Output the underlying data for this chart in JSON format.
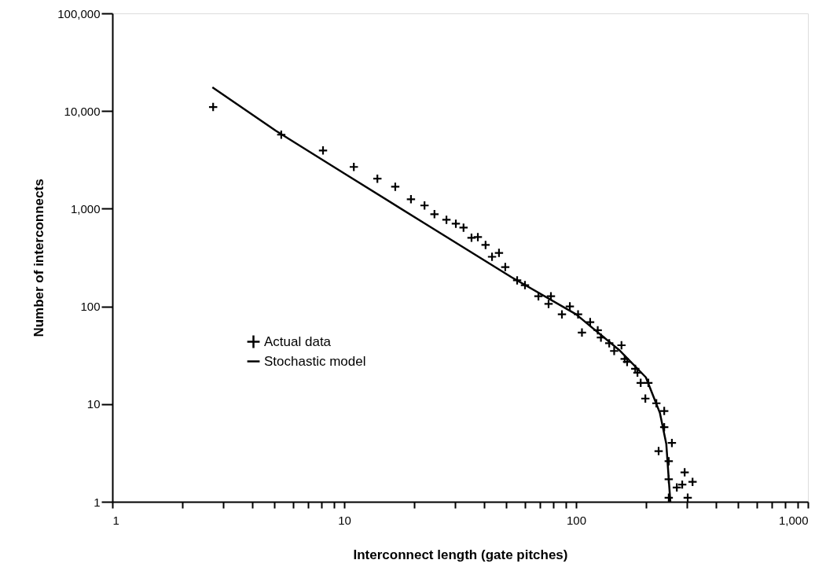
{
  "chart_data": {
    "type": "scatter",
    "xlabel": "Interconnect length (gate pitches)",
    "ylabel": "Number of interconnects",
    "log": "xy",
    "xlim": [
      1,
      1000
    ],
    "ylim": [
      1,
      100000
    ],
    "xticks": [
      1,
      {
        "value": 2,
        "label": null
      },
      {
        "value": 3,
        "label": null
      },
      {
        "value": 4,
        "label": null
      },
      {
        "value": 5,
        "label": null
      },
      {
        "value": 6,
        "label": null
      },
      {
        "value": 7,
        "label": null
      },
      {
        "value": 8,
        "label": null
      },
      {
        "value": 9,
        "label": null
      },
      10,
      {
        "value": 20,
        "label": null
      },
      {
        "value": 30,
        "label": null
      },
      {
        "value": 40,
        "label": null
      },
      {
        "value": 50,
        "label": null
      },
      {
        "value": 60,
        "label": null
      },
      {
        "value": 70,
        "label": null
      },
      {
        "value": 80,
        "label": null
      },
      {
        "value": 90,
        "label": null
      },
      100,
      {
        "value": 200,
        "label": null
      },
      {
        "value": 300,
        "label": null
      },
      {
        "value": 400,
        "label": null
      },
      {
        "value": 500,
        "label": null
      },
      {
        "value": 600,
        "label": null
      },
      {
        "value": 700,
        "label": null
      },
      {
        "value": 800,
        "label": null
      },
      {
        "value": 900,
        "label": null
      },
      {
        "value": 1000,
        "label": "1,000"
      }
    ],
    "yticks": [
      1,
      10,
      100,
      {
        "value": 1000,
        "label": "1,000"
      },
      {
        "value": 10000,
        "label": "10,000"
      },
      {
        "value": 100000,
        "label": "100,000"
      }
    ],
    "grid": false,
    "legend": "bottom left",
    "series": [
      {
        "name": "Actual data",
        "type": "scatter",
        "marker": "cross",
        "color": "#000000",
        "x": [
          2.72,
          5.35,
          8.1,
          11.0,
          13.9,
          16.6,
          19.4,
          22.2,
          24.5,
          27.6,
          30.3,
          32.7,
          35.4,
          37.7,
          40.7,
          43.4,
          46.5,
          49.5,
          55.7,
          60.2,
          68.8,
          76.1,
          77.9,
          86.9,
          94.0,
          102,
          106,
          115,
          124,
          128,
          139,
          146,
          157,
          162,
          166,
          180,
          184,
          190,
          199,
          205,
          222,
          227,
          240,
          240,
          251,
          251,
          251,
          259,
          272,
          287,
          294,
          303,
          318
        ],
        "values": [
          11000,
          5730,
          3950,
          2680,
          2030,
          1680,
          1250,
          1080,
          880,
          771,
          703,
          640,
          504,
          513,
          426,
          322,
          353,
          253,
          185,
          165,
          127,
          106,
          127,
          83,
          100,
          83,
          54,
          69,
          57,
          48,
          42,
          35,
          40,
          29,
          27,
          23,
          21,
          16.5,
          11.4,
          16.5,
          10.2,
          3.3,
          8.5,
          5.8,
          2.6,
          1.7,
          1.1,
          4.0,
          1.4,
          1.5,
          2.0,
          1.1,
          1.6
        ]
      },
      {
        "name": "Stochastic model",
        "type": "line",
        "marker": "none",
        "line_style": "solid",
        "color": "#000000",
        "x": [
          2.7,
          5.07,
          10,
          21.8,
          52.7,
          100,
          153,
          200,
          230,
          245,
          255
        ],
        "values": [
          17500,
          6290,
          2300,
          729,
          199,
          83,
          36,
          18.8,
          8.1,
          3.9,
          1
        ]
      }
    ]
  }
}
